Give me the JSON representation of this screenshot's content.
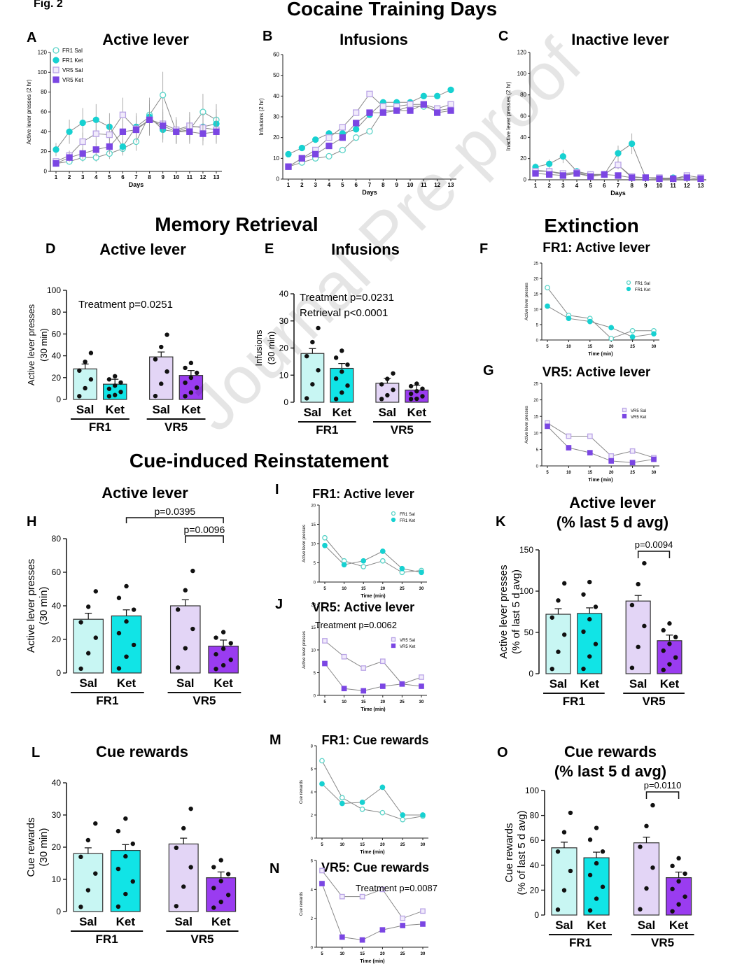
{
  "figure_label": "Fig. 2",
  "watermark": "Journal Pre-proof",
  "sections": {
    "training": "Cocaine Training Days",
    "retrieval": "Memory Retrieval",
    "extinction": "Extinction",
    "reinstatement": "Cue-induced Reinstatement"
  },
  "colors": {
    "fr1_sal": "#5ad3c8",
    "fr1_ket": "#17d1d1",
    "vr5_sal": "#b9a4e6",
    "vr5_ket": "#7b46e3",
    "bar_fr1_sal": "#c8f6f3",
    "bar_fr1_ket": "#11e4e6",
    "bar_vr5_sal": "#e3d5f6",
    "bar_vr5_ket": "#9a3cf0"
  },
  "chart_data": [
    {
      "id": "A",
      "type": "line",
      "title": "Active lever",
      "xlabel": "Days",
      "ylabel": "Active lever presses (2 hr)",
      "ylim": [
        0,
        120
      ],
      "yticks": [
        0,
        20,
        40,
        60,
        80,
        100,
        120
      ],
      "x": [
        1,
        2,
        3,
        4,
        5,
        6,
        7,
        8,
        9,
        10,
        11,
        12,
        13
      ],
      "series": [
        {
          "name": "FR1 Sal",
          "values": [
            8,
            10,
            14,
            14,
            18,
            23,
            30,
            57,
            77,
            40,
            42,
            60,
            52
          ]
        },
        {
          "name": "FR1 Ket",
          "values": [
            22,
            40,
            49,
            52,
            45,
            25,
            45,
            55,
            42,
            40,
            45,
            45,
            48
          ]
        },
        {
          "name": "VR5 Sal",
          "values": [
            10,
            16,
            30,
            38,
            37,
            57,
            43,
            52,
            48,
            42,
            46,
            44,
            42
          ]
        },
        {
          "name": "VR5 Ket",
          "values": [
            8,
            14,
            18,
            22,
            25,
            40,
            42,
            52,
            46,
            40,
            40,
            38,
            40
          ]
        }
      ],
      "legend": [
        "FR1 Sal",
        "FR1 Ket",
        "VR5 Sal",
        "VR5 Ket"
      ]
    },
    {
      "id": "B",
      "type": "line",
      "title": "Infusions",
      "xlabel": "Days",
      "ylabel": "Infusions (2 hr)",
      "ylim": [
        0,
        60
      ],
      "yticks": [
        0,
        10,
        20,
        30,
        40,
        50,
        60
      ],
      "x": [
        1,
        2,
        3,
        4,
        5,
        6,
        7,
        8,
        9,
        10,
        11,
        12,
        13
      ],
      "series": [
        {
          "name": "FR1 Sal",
          "values": [
            6,
            8,
            10,
            11,
            14,
            20,
            23,
            33,
            33,
            35,
            35,
            33,
            34
          ]
        },
        {
          "name": "FR1 Ket",
          "values": [
            12,
            15,
            19,
            22,
            22,
            24,
            31,
            37,
            37,
            37,
            40,
            40,
            43
          ]
        },
        {
          "name": "VR5 Sal",
          "values": [
            6,
            10,
            14,
            20,
            25,
            32,
            41,
            35,
            35,
            36,
            36,
            34,
            36
          ]
        },
        {
          "name": "VR5 Ket",
          "values": [
            6,
            10,
            12,
            16,
            20,
            27,
            32,
            32,
            33,
            33,
            36,
            32,
            33
          ]
        }
      ]
    },
    {
      "id": "C",
      "type": "line",
      "title": "Inactive lever",
      "xlabel": "Days",
      "ylabel": "Inactive lever presses (2 hr)",
      "ylim": [
        0,
        120
      ],
      "yticks": [
        0,
        20,
        40,
        60,
        80,
        100,
        120
      ],
      "x": [
        1,
        2,
        3,
        4,
        5,
        6,
        7,
        8,
        9,
        10,
        11,
        12,
        13
      ],
      "series": [
        {
          "name": "FR1 Sal",
          "values": [
            9,
            8,
            5,
            6,
            4,
            5,
            14,
            2,
            2,
            1,
            1,
            2,
            1
          ]
        },
        {
          "name": "FR1 Ket",
          "values": [
            12,
            15,
            22,
            8,
            5,
            5,
            25,
            34,
            2,
            1,
            2,
            2,
            1
          ]
        },
        {
          "name": "VR5 Sal",
          "values": [
            8,
            8,
            6,
            7,
            5,
            5,
            14,
            3,
            2,
            2,
            1,
            4,
            2
          ]
        },
        {
          "name": "VR5 Ket",
          "values": [
            6,
            5,
            4,
            6,
            3,
            5,
            4,
            2,
            2,
            1,
            1,
            2,
            1
          ]
        }
      ]
    },
    {
      "id": "D",
      "type": "bar",
      "title": "Active lever",
      "ylabel": "Active lever presses (30 min)",
      "ylim": [
        0,
        100
      ],
      "yticks": [
        0,
        20,
        40,
        60,
        80,
        100
      ],
      "categories": [
        "Sal",
        "Ket",
        "Sal",
        "Ket"
      ],
      "groups": [
        "FR1",
        "VR5"
      ],
      "values": [
        28,
        14,
        39,
        22
      ],
      "annotation": [
        "Treatment p=0.0251"
      ]
    },
    {
      "id": "E",
      "type": "bar",
      "title": "Infusions",
      "ylabel": "Infusions (30 min)",
      "ylim": [
        0,
        40
      ],
      "yticks": [
        0,
        10,
        20,
        30,
        40
      ],
      "categories": [
        "Sal",
        "Ket",
        "Sal",
        "Ket"
      ],
      "groups": [
        "FR1",
        "VR5"
      ],
      "values": [
        18,
        12.5,
        7,
        4.5
      ],
      "annotation": [
        "Treatment p=0.0231",
        "Retrieval p<0.0001"
      ]
    },
    {
      "id": "F",
      "type": "line",
      "title": "FR1: Active lever",
      "xlabel": "Time (min)",
      "ylabel": "Active lever presses",
      "ylim": [
        0,
        25
      ],
      "yticks": [
        0,
        5,
        10,
        15,
        20,
        25
      ],
      "x": [
        5,
        10,
        15,
        20,
        25,
        30
      ],
      "series": [
        {
          "name": "FR1 Sal",
          "values": [
            17,
            8,
            7,
            0.5,
            3,
            3
          ]
        },
        {
          "name": "FR1 Ket",
          "values": [
            11,
            7,
            6,
            4,
            1,
            2
          ]
        }
      ]
    },
    {
      "id": "G",
      "type": "line",
      "title": "VR5: Active lever",
      "xlabel": "Time (min)",
      "ylabel": "Active lever presses",
      "ylim": [
        0,
        25
      ],
      "yticks": [
        0,
        5,
        10,
        15,
        20,
        25
      ],
      "x": [
        5,
        10,
        15,
        20,
        25,
        30
      ],
      "series": [
        {
          "name": "VR5 Sal",
          "values": [
            13,
            9,
            9,
            3,
            4.5,
            2.5
          ]
        },
        {
          "name": "VR5 Ket",
          "values": [
            12,
            5.5,
            4,
            1.5,
            1,
            2
          ]
        }
      ]
    },
    {
      "id": "H",
      "type": "bar",
      "title": "Active lever",
      "ylabel": "Active lever presses (30 min)",
      "ylim": [
        0,
        80
      ],
      "yticks": [
        0,
        20,
        40,
        60,
        80
      ],
      "categories": [
        "Sal",
        "Ket",
        "Sal",
        "Ket"
      ],
      "groups": [
        "FR1",
        "VR5"
      ],
      "values": [
        32,
        34,
        40,
        16
      ],
      "brackets": [
        "p=0.0395",
        "p=0.0096"
      ]
    },
    {
      "id": "I",
      "type": "line",
      "title": "FR1: Active lever",
      "xlabel": "Time (min)",
      "ylabel": "Active lever presses",
      "ylim": [
        0,
        20
      ],
      "yticks": [
        0,
        5,
        10,
        15,
        20
      ],
      "x": [
        5,
        10,
        15,
        20,
        25,
        30
      ],
      "series": [
        {
          "name": "FR1 Sal",
          "values": [
            11.5,
            5.5,
            4,
            5.5,
            2.5,
            3
          ]
        },
        {
          "name": "FR1 Ket",
          "values": [
            9.5,
            4.5,
            5.5,
            8,
            3.5,
            2.5
          ]
        }
      ]
    },
    {
      "id": "J",
      "type": "line",
      "title": "VR5: Active lever",
      "xlabel": "Time (min)",
      "ylabel": "Active lever presses",
      "ylim": [
        0,
        20
      ],
      "yticks": [
        0,
        5,
        10,
        15,
        20
      ],
      "x": [
        5,
        10,
        15,
        20,
        25,
        30
      ],
      "series": [
        {
          "name": "VR5 Sal",
          "values": [
            12,
            8.5,
            6,
            7.5,
            2.5,
            4
          ]
        },
        {
          "name": "VR5 Ket",
          "values": [
            7,
            1.5,
            1,
            2,
            2.5,
            2
          ]
        }
      ],
      "annotation": [
        "Treatment p=0.0062"
      ]
    },
    {
      "id": "K",
      "type": "bar",
      "title": "Active lever (% last 5 d avg)",
      "ylabel": "Active lever presses (% of last 5 d avg)",
      "ylim": [
        0,
        150
      ],
      "yticks": [
        0,
        50,
        100,
        150
      ],
      "categories": [
        "Sal",
        "Ket",
        "Sal",
        "Ket"
      ],
      "groups": [
        "FR1",
        "VR5"
      ],
      "values": [
        72,
        73,
        88,
        40
      ],
      "brackets": [
        "p=0.0094"
      ]
    },
    {
      "id": "L",
      "type": "bar",
      "title": "Cue rewards",
      "ylabel": "Cue rewards (30 min)",
      "ylim": [
        0,
        40
      ],
      "yticks": [
        0,
        10,
        20,
        30,
        40
      ],
      "categories": [
        "Sal",
        "Ket",
        "Sal",
        "Ket"
      ],
      "groups": [
        "FR1",
        "VR5"
      ],
      "values": [
        18,
        19,
        21,
        10.5
      ]
    },
    {
      "id": "M",
      "type": "line",
      "title": "FR1: Cue rewards",
      "xlabel": "Time (min)",
      "ylabel": "Cue rewards",
      "ylim": [
        0,
        8
      ],
      "yticks": [
        0,
        2,
        4,
        6,
        8
      ],
      "x": [
        5,
        10,
        15,
        20,
        25,
        30
      ],
      "series": [
        {
          "name": "FR1 Sal",
          "values": [
            6.7,
            3.5,
            2.5,
            2.2,
            1.6,
            1.9
          ]
        },
        {
          "name": "FR1 Ket",
          "values": [
            4.7,
            3,
            3.1,
            4.4,
            2,
            2
          ]
        }
      ]
    },
    {
      "id": "N",
      "type": "line",
      "title": "VR5: Cue rewards",
      "xlabel": "Time (min)",
      "ylabel": "Cue rewards",
      "ylim": [
        0,
        6
      ],
      "yticks": [
        0,
        2,
        4,
        6
      ],
      "x": [
        5,
        10,
        15,
        20,
        25,
        30
      ],
      "series": [
        {
          "name": "VR5 Sal",
          "values": [
            5.3,
            3.5,
            3.5,
            4,
            2,
            2.5
          ]
        },
        {
          "name": "VR5 Ket",
          "values": [
            4.4,
            0.7,
            0.5,
            1.2,
            1.5,
            1.6
          ]
        }
      ],
      "annotation": [
        "Treatment p=0.0087"
      ]
    },
    {
      "id": "O",
      "type": "bar",
      "title": "Cue rewards (% last 5 d avg)",
      "ylabel": "Cue rewards (% of last 5 d avg)",
      "ylim": [
        0,
        100
      ],
      "yticks": [
        0,
        20,
        40,
        60,
        80,
        100
      ],
      "categories": [
        "Sal",
        "Ket",
        "Sal",
        "Ket"
      ],
      "groups": [
        "FR1",
        "VR5"
      ],
      "values": [
        54,
        46,
        58,
        30
      ],
      "brackets": [
        "p=0.0110"
      ]
    }
  ]
}
